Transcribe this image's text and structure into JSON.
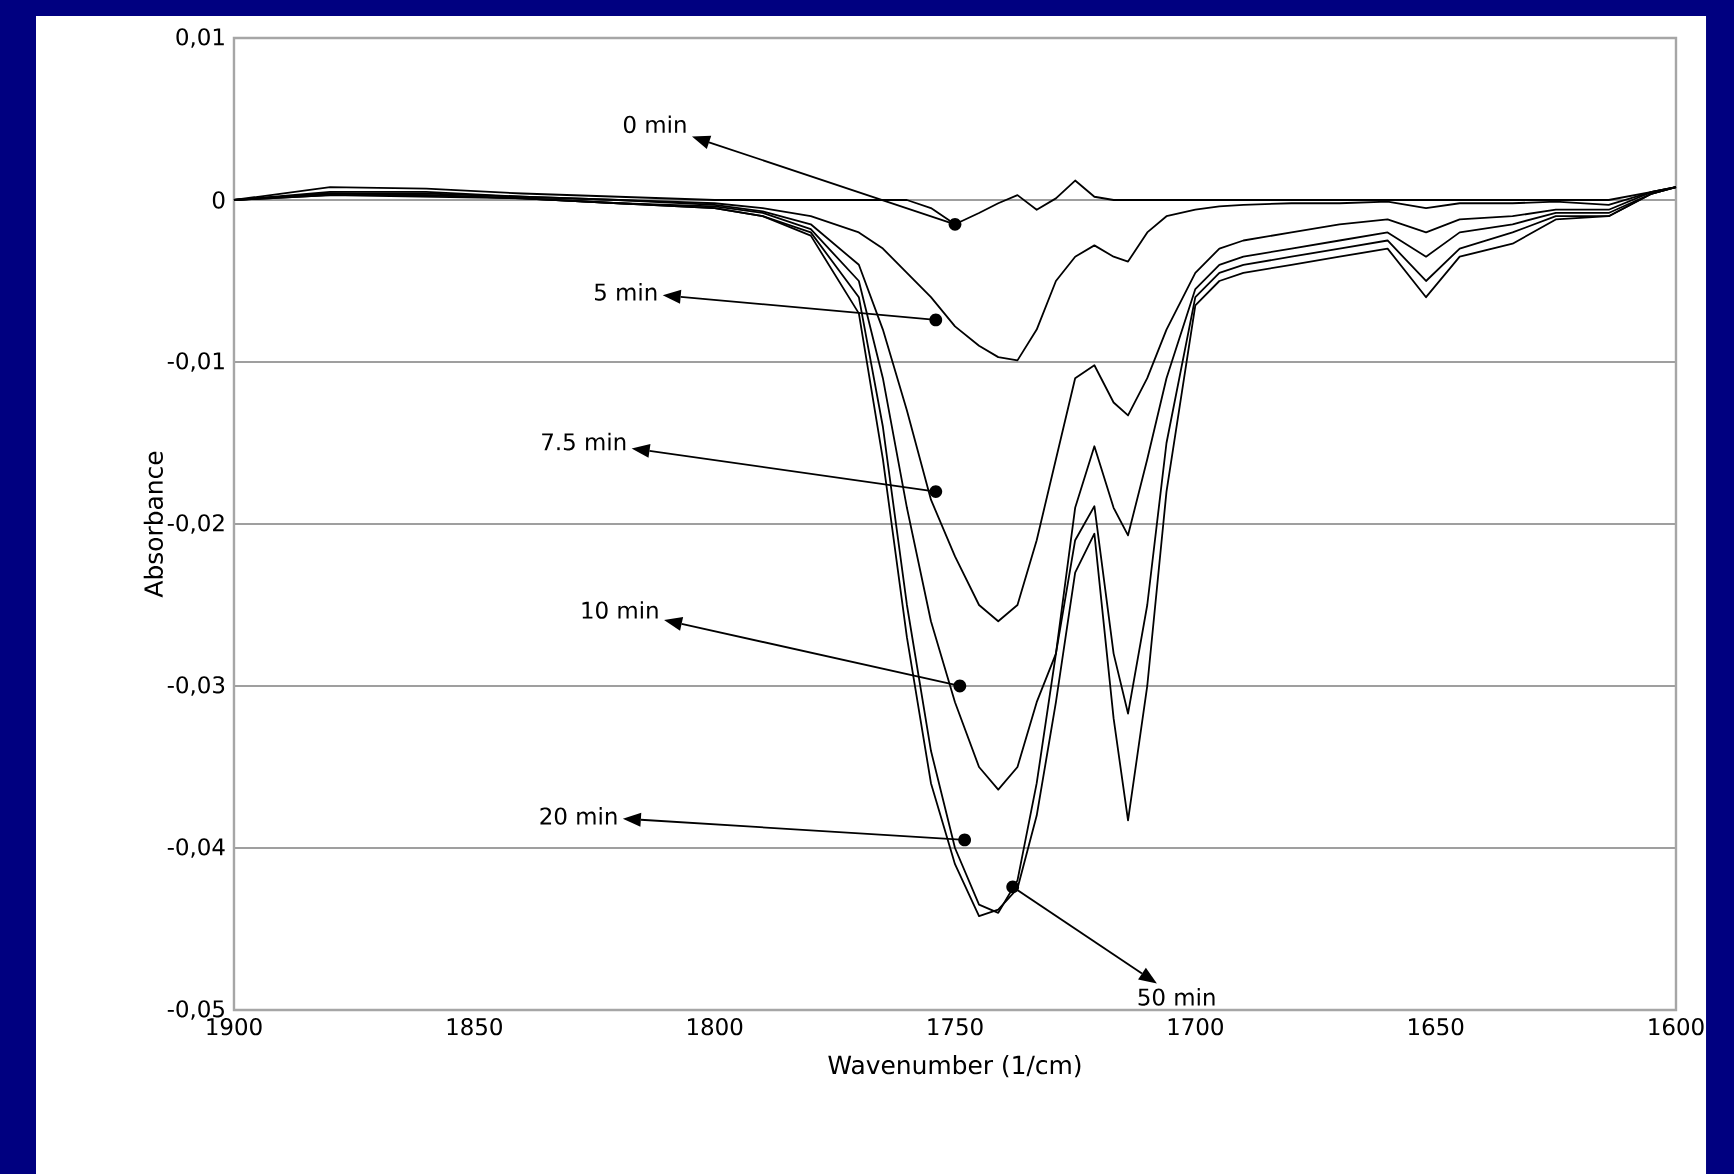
{
  "chart_data": {
    "type": "line",
    "xlabel": "Wavenumber (1/cm)",
    "ylabel": "Absorbance",
    "x": [
      1900,
      1880,
      1860,
      1840,
      1820,
      1800,
      1790,
      1780,
      1770,
      1765,
      1760,
      1755,
      1750,
      1745,
      1741,
      1737,
      1733,
      1729,
      1725,
      1721,
      1717,
      1714,
      1710,
      1706,
      1700,
      1695,
      1690,
      1680,
      1670,
      1660,
      1652,
      1645,
      1634,
      1625,
      1614,
      1605,
      1600
    ],
    "series": [
      {
        "color": "#000000",
        "values": [
          0,
          0.0008,
          0.0007,
          0.0004,
          0.0002,
          0,
          0,
          0,
          0,
          0,
          0,
          -0.0005,
          -0.0015,
          -0.0008,
          -0.0002,
          0.0003,
          -0.0006,
          0.0001,
          0.0012,
          0.0002,
          0,
          0,
          0,
          0,
          0,
          0,
          0,
          0,
          0,
          0,
          0,
          0,
          0,
          0,
          0,
          0.0005,
          0.0008
        ]
      },
      {
        "color": "#000000",
        "values": [
          0,
          0.0005,
          0.0005,
          0.0002,
          0,
          -0.0002,
          -0.0005,
          -0.001,
          -0.002,
          -0.003,
          -0.0045,
          -0.006,
          -0.0078,
          -0.009,
          -0.0097,
          -0.0099,
          -0.008,
          -0.005,
          -0.0035,
          -0.0028,
          -0.0035,
          -0.0038,
          -0.002,
          -0.001,
          -0.0006,
          -0.0004,
          -0.0003,
          -0.0002,
          -0.0002,
          -0.0001,
          -0.0005,
          -0.0002,
          -0.0002,
          -0.0001,
          -0.0003,
          0.0005,
          0.0008
        ]
      },
      {
        "color": "#000000",
        "values": [
          0,
          0.0004,
          0.0004,
          0.0002,
          0,
          -0.0003,
          -0.0007,
          -0.0015,
          -0.004,
          -0.008,
          -0.013,
          -0.0185,
          -0.022,
          -0.025,
          -0.026,
          -0.025,
          -0.021,
          -0.016,
          -0.011,
          -0.0102,
          -0.0125,
          -0.0133,
          -0.011,
          -0.008,
          -0.0045,
          -0.003,
          -0.0025,
          -0.002,
          -0.0015,
          -0.0012,
          -0.002,
          -0.0012,
          -0.001,
          -0.0006,
          -0.0006,
          0.0005,
          0.0008
        ]
      },
      {
        "color": "#000000",
        "values": [
          0,
          0.0004,
          0.0003,
          0.0001,
          -0.0002,
          -0.0004,
          -0.0008,
          -0.0018,
          -0.005,
          -0.011,
          -0.019,
          -0.026,
          -0.031,
          -0.035,
          -0.0364,
          -0.035,
          -0.031,
          -0.028,
          -0.019,
          -0.0152,
          -0.019,
          -0.0207,
          -0.016,
          -0.011,
          -0.0055,
          -0.004,
          -0.0035,
          -0.003,
          -0.0025,
          -0.002,
          -0.0035,
          -0.002,
          -0.0015,
          -0.0008,
          -0.0008,
          0.0004,
          0.0008
        ]
      },
      {
        "color": "#000000",
        "values": [
          0,
          0.0003,
          0.0003,
          0.0001,
          -0.0002,
          -0.0005,
          -0.001,
          -0.002,
          -0.006,
          -0.014,
          -0.025,
          -0.034,
          -0.04,
          -0.0435,
          -0.044,
          -0.042,
          -0.036,
          -0.028,
          -0.021,
          -0.0189,
          -0.028,
          -0.0317,
          -0.025,
          -0.015,
          -0.006,
          -0.0045,
          -0.004,
          -0.0035,
          -0.003,
          -0.0025,
          -0.005,
          -0.003,
          -0.002,
          -0.001,
          -0.001,
          0.0004,
          0.0008
        ]
      },
      {
        "color": "#000000",
        "values": [
          0,
          0.0003,
          0.0002,
          0.0001,
          -0.0002,
          -0.0005,
          -0.001,
          -0.0022,
          -0.007,
          -0.016,
          -0.027,
          -0.036,
          -0.041,
          -0.0442,
          -0.0438,
          -0.0425,
          -0.038,
          -0.031,
          -0.023,
          -0.0206,
          -0.032,
          -0.0383,
          -0.03,
          -0.018,
          -0.0065,
          -0.005,
          -0.0045,
          -0.004,
          -0.0035,
          -0.003,
          -0.006,
          -0.0035,
          -0.0027,
          -0.0012,
          -0.001,
          0.0004,
          0.0008
        ]
      }
    ],
    "xlim": [
      1900,
      1600
    ],
    "xticks": [
      1900,
      1850,
      1800,
      1750,
      1700,
      1650,
      1600
    ],
    "ylim": [
      -0.05,
      0.01
    ],
    "yticks": [
      {
        "value": -0.05,
        "label": "-0,05"
      },
      {
        "value": -0.04,
        "label": "-0,04"
      },
      {
        "value": -0.03,
        "label": "-0,03"
      },
      {
        "value": -0.02,
        "label": "-0,02"
      },
      {
        "value": -0.01,
        "label": "-0,01"
      },
      {
        "value": 0,
        "label": "0"
      },
      {
        "value": 0.01,
        "label": "0,01"
      }
    ],
    "grid": "y",
    "marker": "none",
    "line_style": "solid",
    "annotations": [
      {
        "text": "0 min",
        "x": 1750,
        "y": -0.0015
      },
      {
        "text": "5 min",
        "x": 1754,
        "y": -0.0074
      },
      {
        "text": "7.5 min",
        "x": 1754,
        "y": -0.018
      },
      {
        "text": "10 min",
        "x": 1749,
        "y": -0.03
      },
      {
        "text": "20 min",
        "x": 1748,
        "y": -0.0395
      },
      {
        "text": "50 min",
        "x": 1738,
        "y": -0.0424
      }
    ]
  }
}
